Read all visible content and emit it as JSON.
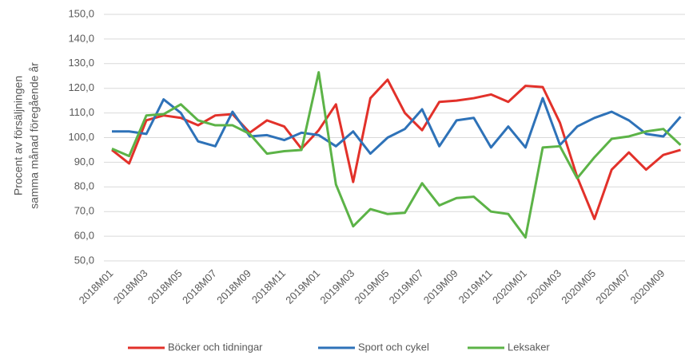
{
  "chart_data": {
    "type": "line",
    "ylabel": [
      "Procent av försäljningen",
      "samma månad föregående år"
    ],
    "categories": [
      "2018M01",
      null,
      "2018M03",
      null,
      "2018M05",
      null,
      "2018M07",
      null,
      "2018M09",
      null,
      "2018M11",
      null,
      "2019M01",
      null,
      "2019M03",
      null,
      "2019M05",
      null,
      "2019M07",
      null,
      "2019M09",
      null,
      "2019M11",
      null,
      "2020M01",
      null,
      "2020M03",
      null,
      "2020M05",
      null,
      "2020M07",
      null,
      "2020M09",
      null
    ],
    "series": [
      {
        "name": "Böcker och tidningar",
        "color": "#e2312a",
        "values": [
          95,
          89.5,
          107,
          109,
          108,
          105,
          109,
          109.5,
          102,
          107,
          104.5,
          95.5,
          103,
          113.5,
          82,
          116,
          123.5,
          110,
          103,
          114.5,
          115,
          116,
          117.5,
          114.5,
          121,
          120.5,
          106,
          84,
          67,
          87,
          94,
          87,
          93,
          95
        ]
      },
      {
        "name": "Sport och cykel",
        "color": "#2e72b8",
        "values": [
          102.5,
          102.5,
          101.5,
          115.5,
          110,
          98.5,
          96.5,
          110.5,
          100.5,
          101,
          99,
          102,
          101,
          96.5,
          102.5,
          93.5,
          100,
          103.5,
          111.5,
          96.5,
          107,
          108,
          96,
          104.5,
          96,
          116,
          97,
          104.5,
          108,
          110.5,
          107,
          101.5,
          100.5,
          108.5
        ]
      },
      {
        "name": "Leksaker",
        "color": "#5cb347",
        "values": [
          95.5,
          92.5,
          109,
          109.5,
          113.5,
          107,
          105,
          105,
          101.5,
          93.5,
          94.5,
          95,
          126.5,
          81,
          64,
          71,
          69,
          69.5,
          81.5,
          72.5,
          75.5,
          76,
          70,
          69,
          59.5,
          96,
          96.5,
          83.5,
          92,
          99.5,
          100.5,
          102.5,
          103.5,
          97
        ]
      }
    ],
    "ylim": [
      50,
      150
    ],
    "yticks": [
      {
        "value": 50,
        "label": "50,0"
      },
      {
        "value": 60,
        "label": "60,0"
      },
      {
        "value": 70,
        "label": "70,0"
      },
      {
        "value": 80,
        "label": "80,0"
      },
      {
        "value": 90,
        "label": "90,0"
      },
      {
        "value": 100,
        "label": "100,0"
      },
      {
        "value": 110,
        "label": "110,0"
      },
      {
        "value": 120,
        "label": "120,0"
      },
      {
        "value": 130,
        "label": "130,0"
      },
      {
        "value": 140,
        "label": "140,0"
      },
      {
        "value": 150,
        "label": "150,0"
      }
    ],
    "grid": true,
    "legend": "bottom"
  }
}
